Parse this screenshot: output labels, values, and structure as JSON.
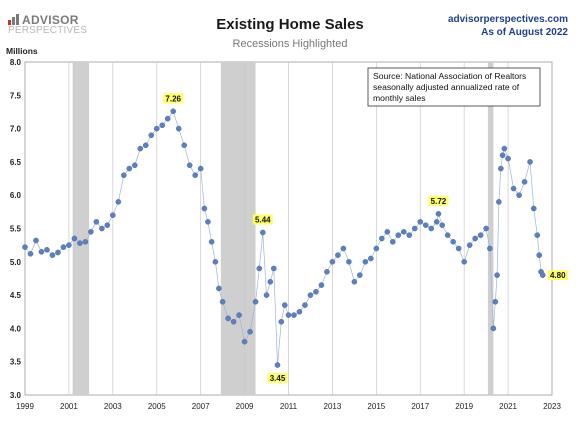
{
  "header": {
    "logo_line1": "ADVISOR",
    "logo_line2": "PERSPECTIVES",
    "site": "advisorperspectives.com",
    "date_note": "As of August 2022"
  },
  "chart_data": {
    "type": "scatter",
    "title": "Existing Home Sales",
    "subtitle": "Recessions Highlighted",
    "ylabel": "Millions",
    "xlabel": "",
    "xlim": [
      1999,
      2023
    ],
    "ylim": [
      3.0,
      8.0
    ],
    "x_ticks": [
      1999,
      2001,
      2003,
      2005,
      2007,
      2009,
      2011,
      2013,
      2015,
      2017,
      2019,
      2021,
      2023
    ],
    "y_ticks": [
      "3.0",
      "3.5",
      "4.0",
      "4.5",
      "5.0",
      "5.5",
      "6.0",
      "6.5",
      "7.0",
      "7.5",
      "8.0"
    ],
    "grid": "vertical",
    "recessions": [
      [
        2001.17,
        2001.92
      ],
      [
        2007.92,
        2009.5
      ],
      [
        2020.08,
        2020.33
      ]
    ],
    "source_note": [
      "Source: National Association of Realtors",
      "seasonally adjusted annualized rate of",
      "monthly sales"
    ],
    "annotations": [
      {
        "label": "7.26",
        "x": 2005.75,
        "y": 7.26
      },
      {
        "label": "5.44",
        "x": 2009.83,
        "y": 5.44
      },
      {
        "label": "3.45",
        "x": 2010.5,
        "y": 3.45
      },
      {
        "label": "5.72",
        "x": 2017.83,
        "y": 5.72
      },
      {
        "label": "4.80",
        "x": 2022.58,
        "y": 4.8
      }
    ],
    "series": [
      {
        "values": [
          [
            1999.0,
            5.22
          ],
          [
            1999.25,
            5.12
          ],
          [
            1999.5,
            5.32
          ],
          [
            1999.75,
            5.15
          ],
          [
            2000.0,
            5.18
          ],
          [
            2000.25,
            5.1
          ],
          [
            2000.5,
            5.14
          ],
          [
            2000.75,
            5.22
          ],
          [
            2001.0,
            5.25
          ],
          [
            2001.25,
            5.35
          ],
          [
            2001.5,
            5.28
          ],
          [
            2001.75,
            5.3
          ],
          [
            2002.0,
            5.45
          ],
          [
            2002.25,
            5.6
          ],
          [
            2002.5,
            5.5
          ],
          [
            2002.75,
            5.55
          ],
          [
            2003.0,
            5.7
          ],
          [
            2003.25,
            5.9
          ],
          [
            2003.5,
            6.3
          ],
          [
            2003.75,
            6.4
          ],
          [
            2004.0,
            6.45
          ],
          [
            2004.25,
            6.7
          ],
          [
            2004.5,
            6.75
          ],
          [
            2004.75,
            6.9
          ],
          [
            2005.0,
            7.0
          ],
          [
            2005.25,
            7.05
          ],
          [
            2005.5,
            7.15
          ],
          [
            2005.75,
            7.26
          ],
          [
            2006.0,
            7.0
          ],
          [
            2006.25,
            6.75
          ],
          [
            2006.5,
            6.45
          ],
          [
            2006.75,
            6.3
          ],
          [
            2007.0,
            6.4
          ],
          [
            2007.17,
            5.8
          ],
          [
            2007.33,
            5.6
          ],
          [
            2007.5,
            5.3
          ],
          [
            2007.67,
            5.0
          ],
          [
            2007.83,
            4.6
          ],
          [
            2008.0,
            4.4
          ],
          [
            2008.25,
            4.15
          ],
          [
            2008.5,
            4.1
          ],
          [
            2008.75,
            4.2
          ],
          [
            2009.0,
            3.8
          ],
          [
            2009.25,
            3.95
          ],
          [
            2009.5,
            4.4
          ],
          [
            2009.67,
            4.9
          ],
          [
            2009.83,
            5.44
          ],
          [
            2010.0,
            4.5
          ],
          [
            2010.17,
            4.7
          ],
          [
            2010.33,
            4.9
          ],
          [
            2010.5,
            3.45
          ],
          [
            2010.67,
            4.1
          ],
          [
            2010.83,
            4.35
          ],
          [
            2011.0,
            4.2
          ],
          [
            2011.25,
            4.2
          ],
          [
            2011.5,
            4.25
          ],
          [
            2011.75,
            4.35
          ],
          [
            2012.0,
            4.5
          ],
          [
            2012.25,
            4.55
          ],
          [
            2012.5,
            4.65
          ],
          [
            2012.75,
            4.85
          ],
          [
            2013.0,
            5.0
          ],
          [
            2013.25,
            5.1
          ],
          [
            2013.5,
            5.2
          ],
          [
            2013.75,
            5.0
          ],
          [
            2014.0,
            4.7
          ],
          [
            2014.25,
            4.8
          ],
          [
            2014.5,
            5.0
          ],
          [
            2014.75,
            5.05
          ],
          [
            2015.0,
            5.2
          ],
          [
            2015.25,
            5.35
          ],
          [
            2015.5,
            5.45
          ],
          [
            2015.75,
            5.3
          ],
          [
            2016.0,
            5.4
          ],
          [
            2016.25,
            5.45
          ],
          [
            2016.5,
            5.4
          ],
          [
            2016.75,
            5.5
          ],
          [
            2017.0,
            5.6
          ],
          [
            2017.25,
            5.55
          ],
          [
            2017.5,
            5.5
          ],
          [
            2017.75,
            5.6
          ],
          [
            2017.83,
            5.72
          ],
          [
            2018.0,
            5.55
          ],
          [
            2018.25,
            5.4
          ],
          [
            2018.5,
            5.3
          ],
          [
            2018.75,
            5.2
          ],
          [
            2019.0,
            5.0
          ],
          [
            2019.25,
            5.25
          ],
          [
            2019.5,
            5.35
          ],
          [
            2019.75,
            5.4
          ],
          [
            2020.0,
            5.5
          ],
          [
            2020.17,
            5.2
          ],
          [
            2020.33,
            4.0
          ],
          [
            2020.42,
            4.4
          ],
          [
            2020.5,
            4.8
          ],
          [
            2020.58,
            5.9
          ],
          [
            2020.67,
            6.4
          ],
          [
            2020.75,
            6.6
          ],
          [
            2020.83,
            6.7
          ],
          [
            2021.0,
            6.55
          ],
          [
            2021.25,
            6.1
          ],
          [
            2021.5,
            6.0
          ],
          [
            2021.75,
            6.2
          ],
          [
            2022.0,
            6.5
          ],
          [
            2022.17,
            5.8
          ],
          [
            2022.33,
            5.4
          ],
          [
            2022.42,
            5.1
          ],
          [
            2022.5,
            4.85
          ],
          [
            2022.58,
            4.8
          ]
        ]
      }
    ]
  }
}
